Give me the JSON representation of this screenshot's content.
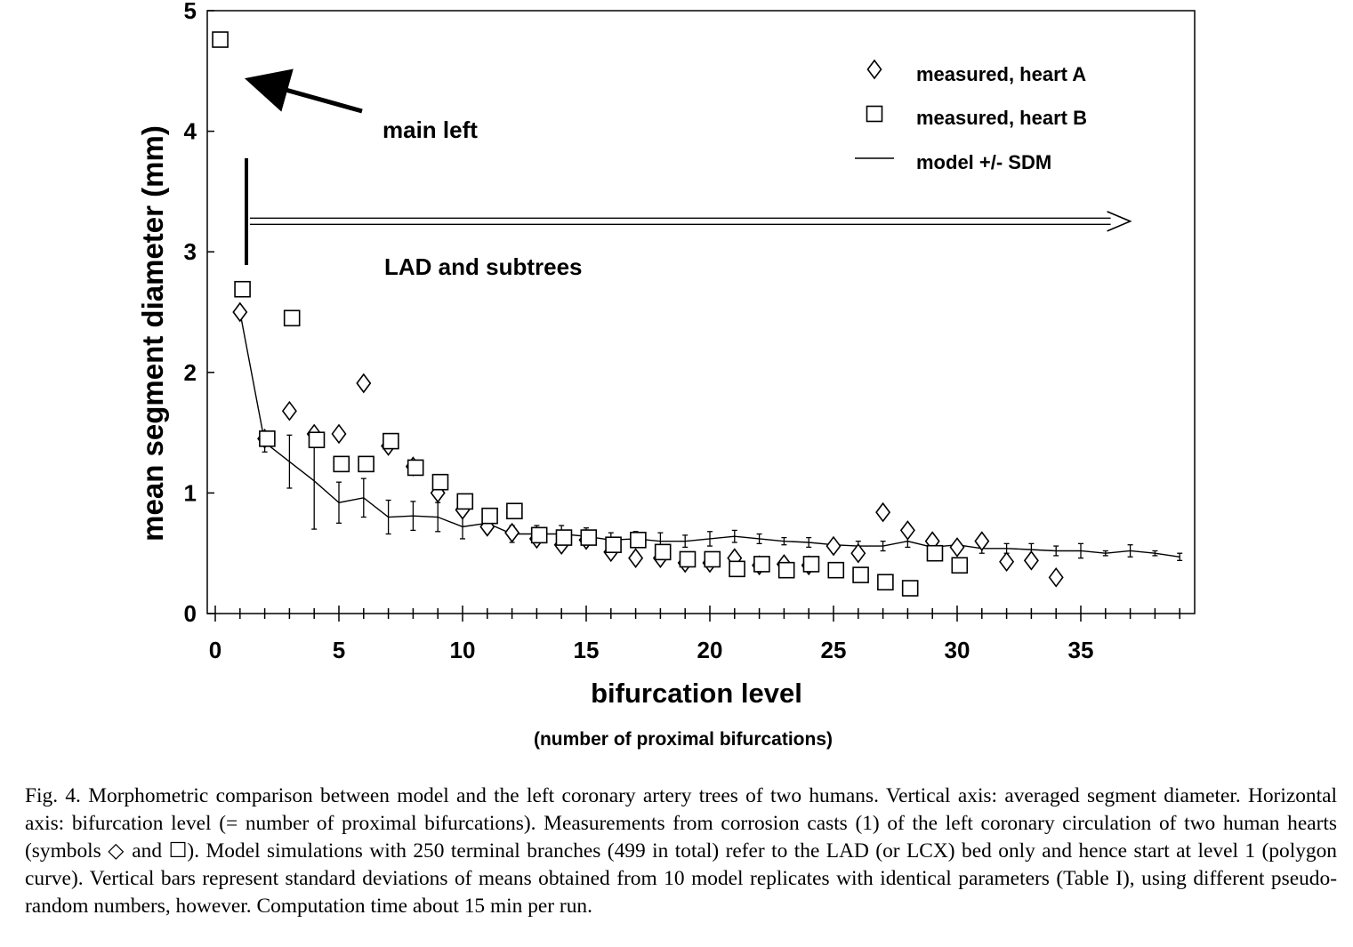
{
  "chart_data": {
    "type": "scatter",
    "xlabel": "bifurcation level",
    "xlabel_sub": "(number of proximal bifurcations)",
    "ylabel": "mean segment diameter (mm)",
    "xlim": [
      -0.5,
      39
    ],
    "ylim": [
      0,
      5
    ],
    "xticks": [
      0,
      5,
      10,
      15,
      20,
      25,
      30,
      35
    ],
    "yticks": [
      0,
      1,
      2,
      3,
      4,
      5
    ],
    "grid": false,
    "legend_position": "top-right",
    "series": [
      {
        "name": "measured, heart A",
        "marker": "diamond",
        "points": [
          [
            1,
            2.5
          ],
          [
            2,
            1.45
          ],
          [
            3,
            1.68
          ],
          [
            4,
            1.49
          ],
          [
            5,
            1.49
          ],
          [
            6,
            1.91
          ],
          [
            7,
            1.39
          ],
          [
            8,
            1.22
          ],
          [
            9,
            1.0
          ],
          [
            10,
            0.86
          ],
          [
            11,
            0.72
          ],
          [
            12,
            0.67
          ],
          [
            13,
            0.62
          ],
          [
            14,
            0.57
          ],
          [
            15,
            0.61
          ],
          [
            16,
            0.51
          ],
          [
            17,
            0.46
          ],
          [
            18,
            0.46
          ],
          [
            19,
            0.42
          ],
          [
            20,
            0.42
          ],
          [
            21,
            0.46
          ],
          [
            22,
            0.4
          ],
          [
            23,
            0.41
          ],
          [
            24,
            0.4
          ],
          [
            25,
            0.56
          ],
          [
            26,
            0.5
          ],
          [
            27,
            0.84
          ],
          [
            28,
            0.69
          ],
          [
            29,
            0.6
          ],
          [
            30,
            0.55
          ],
          [
            31,
            0.6
          ],
          [
            32,
            0.43
          ],
          [
            33,
            0.44
          ],
          [
            34,
            0.3
          ]
        ]
      },
      {
        "name": "measured, heart B",
        "marker": "square",
        "points": [
          [
            0.2,
            4.76
          ],
          [
            1.1,
            2.69
          ],
          [
            3.1,
            2.45
          ],
          [
            2.1,
            1.45
          ],
          [
            4.1,
            1.44
          ],
          [
            5.1,
            1.24
          ],
          [
            6.1,
            1.24
          ],
          [
            7.1,
            1.43
          ],
          [
            8.1,
            1.21
          ],
          [
            9.1,
            1.09
          ],
          [
            10.1,
            0.93
          ],
          [
            11.1,
            0.81
          ],
          [
            12.1,
            0.85
          ],
          [
            13.1,
            0.65
          ],
          [
            14.1,
            0.63
          ],
          [
            15.1,
            0.63
          ],
          [
            16.1,
            0.57
          ],
          [
            17.1,
            0.61
          ],
          [
            18.1,
            0.51
          ],
          [
            19.1,
            0.45
          ],
          [
            20.1,
            0.45
          ],
          [
            21.1,
            0.37
          ],
          [
            22.1,
            0.41
          ],
          [
            23.1,
            0.36
          ],
          [
            24.1,
            0.41
          ],
          [
            25.1,
            0.36
          ],
          [
            26.1,
            0.32
          ],
          [
            27.1,
            0.26
          ],
          [
            28.1,
            0.21
          ],
          [
            29.1,
            0.5
          ],
          [
            30.1,
            0.4
          ]
        ]
      },
      {
        "name": "model +/- SDM",
        "marker": "line",
        "x": [
          1,
          2,
          3,
          4,
          5,
          6,
          7,
          8,
          9,
          10,
          11,
          12,
          13,
          14,
          15,
          16,
          17,
          18,
          19,
          20,
          21,
          22,
          23,
          24,
          25,
          26,
          27,
          28,
          29,
          30,
          31,
          32,
          33,
          34,
          35,
          36,
          37,
          38,
          39
        ],
        "y": [
          2.5,
          1.42,
          1.26,
          1.1,
          0.92,
          0.96,
          0.8,
          0.81,
          0.8,
          0.72,
          0.75,
          0.66,
          0.66,
          0.66,
          0.64,
          0.61,
          0.62,
          0.6,
          0.6,
          0.62,
          0.64,
          0.62,
          0.6,
          0.59,
          0.57,
          0.56,
          0.56,
          0.6,
          0.55,
          0.57,
          0.54,
          0.54,
          0.53,
          0.52,
          0.52,
          0.5,
          0.52,
          0.5,
          0.47
        ],
        "sdm": [
          0.0,
          0.08,
          0.22,
          0.4,
          0.17,
          0.16,
          0.14,
          0.12,
          0.12,
          0.1,
          0.08,
          0.07,
          0.07,
          0.07,
          0.07,
          0.06,
          0.06,
          0.07,
          0.05,
          0.06,
          0.05,
          0.04,
          0.03,
          0.04,
          0.04,
          0.04,
          0.04,
          0.05,
          0.04,
          0.03,
          0.04,
          0.04,
          0.05,
          0.04,
          0.06,
          0.02,
          0.05,
          0.02,
          0.03
        ]
      }
    ],
    "annotations": [
      {
        "text": "main left",
        "arrow_to": [
          1.1,
          4.5
        ]
      },
      {
        "text": "LAD and subtrees",
        "arrow_from": 1.4,
        "arrow_to": 37,
        "level": 3.15
      }
    ]
  },
  "caption": "Fig. 4.   Morphometric comparison between model and the left coronary artery trees of two humans. Vertical axis: averaged segment diameter. Horizontal axis: bifurcation level (= number of proximal bifurcations). Measurements from corrosion casts (1) of the left coronary circulation of two human hearts (symbols ◇ and ☐). Model simulations with 250 terminal branches (499 in total) refer to the LAD (or LCX) bed only and hence start at level 1 (polygon curve). Vertical bars represent standard deviations of means obtained from 10 model replicates with identical parameters (Table I), using different pseudo-random numbers, however. Computation time about 15 min per run."
}
